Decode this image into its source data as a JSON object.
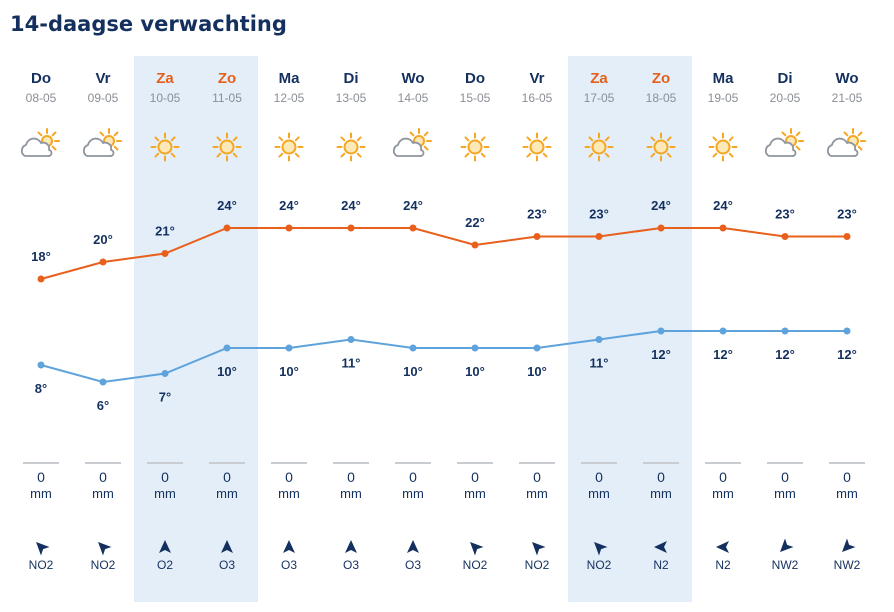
{
  "title": "14-daagse verwachting",
  "colors": {
    "max_line": "#e8601c",
    "min_line": "#5fa3dc",
    "weekend_text": "#e5601a",
    "weekend_bg": "#e3eef9",
    "text": "#14305e",
    "sun": "#f5a623",
    "cloud": "#8e959e"
  },
  "chart_data": {
    "type": "line",
    "title": "14-daagse verwachting",
    "categories": [
      "08-05",
      "09-05",
      "10-05",
      "11-05",
      "12-05",
      "13-05",
      "14-05",
      "15-05",
      "16-05",
      "17-05",
      "18-05",
      "19-05",
      "20-05",
      "21-05"
    ],
    "series": [
      {
        "values": [
          18,
          20,
          21,
          24,
          24,
          24,
          24,
          22,
          23,
          23,
          24,
          24,
          23,
          23
        ]
      },
      {
        "values": [
          8,
          6,
          7,
          10,
          10,
          11,
          10,
          10,
          10,
          11,
          12,
          12,
          12,
          12
        ]
      }
    ],
    "temp_labels_max": [
      "18°",
      "20°",
      "21°",
      "24°",
      "24°",
      "24°",
      "24°",
      "22°",
      "23°",
      "23°",
      "24°",
      "24°",
      "23°",
      "23°"
    ],
    "temp_labels_min": [
      "8°",
      "6°",
      "7°",
      "10°",
      "10°",
      "11°",
      "10°",
      "10°",
      "10°",
      "11°",
      "12°",
      "12°",
      "12°",
      "12°"
    ],
    "grid": false,
    "legend": "none"
  },
  "days": [
    {
      "name": "Do",
      "date": "08-05",
      "weekend": false,
      "icon": "partly-cloudy-icon",
      "rain": "0",
      "rain_unit": "mm",
      "wind": "NO2",
      "wind_dir_deg": 225
    },
    {
      "name": "Vr",
      "date": "09-05",
      "weekend": false,
      "icon": "partly-cloudy-icon",
      "rain": "0",
      "rain_unit": "mm",
      "wind": "NO2",
      "wind_dir_deg": 225
    },
    {
      "name": "Za",
      "date": "10-05",
      "weekend": true,
      "icon": "sun-icon",
      "rain": "0",
      "rain_unit": "mm",
      "wind": "O2",
      "wind_dir_deg": 270
    },
    {
      "name": "Zo",
      "date": "11-05",
      "weekend": true,
      "icon": "sun-icon",
      "rain": "0",
      "rain_unit": "mm",
      "wind": "O3",
      "wind_dir_deg": 270
    },
    {
      "name": "Ma",
      "date": "12-05",
      "weekend": false,
      "icon": "sun-icon",
      "rain": "0",
      "rain_unit": "mm",
      "wind": "O3",
      "wind_dir_deg": 270
    },
    {
      "name": "Di",
      "date": "13-05",
      "weekend": false,
      "icon": "sun-icon",
      "rain": "0",
      "rain_unit": "mm",
      "wind": "O3",
      "wind_dir_deg": 270
    },
    {
      "name": "Wo",
      "date": "14-05",
      "weekend": false,
      "icon": "partly-cloudy-icon",
      "rain": "0",
      "rain_unit": "mm",
      "wind": "O3",
      "wind_dir_deg": 270
    },
    {
      "name": "Do",
      "date": "15-05",
      "weekend": false,
      "icon": "sun-icon",
      "rain": "0",
      "rain_unit": "mm",
      "wind": "NO2",
      "wind_dir_deg": 225
    },
    {
      "name": "Vr",
      "date": "16-05",
      "weekend": false,
      "icon": "sun-icon",
      "rain": "0",
      "rain_unit": "mm",
      "wind": "NO2",
      "wind_dir_deg": 225
    },
    {
      "name": "Za",
      "date": "17-05",
      "weekend": true,
      "icon": "sun-icon",
      "rain": "0",
      "rain_unit": "mm",
      "wind": "NO2",
      "wind_dir_deg": 225
    },
    {
      "name": "Zo",
      "date": "18-05",
      "weekend": true,
      "icon": "sun-icon",
      "rain": "0",
      "rain_unit": "mm",
      "wind": "N2",
      "wind_dir_deg": 180
    },
    {
      "name": "Ma",
      "date": "19-05",
      "weekend": false,
      "icon": "sun-icon",
      "rain": "0",
      "rain_unit": "mm",
      "wind": "N2",
      "wind_dir_deg": 180
    },
    {
      "name": "Di",
      "date": "20-05",
      "weekend": false,
      "icon": "partly-cloudy-icon",
      "rain": "0",
      "rain_unit": "mm",
      "wind": "NW2",
      "wind_dir_deg": 135
    },
    {
      "name": "Wo",
      "date": "21-05",
      "weekend": false,
      "icon": "partly-cloudy-icon",
      "rain": "0",
      "rain_unit": "mm",
      "wind": "NW2",
      "wind_dir_deg": 135
    }
  ]
}
